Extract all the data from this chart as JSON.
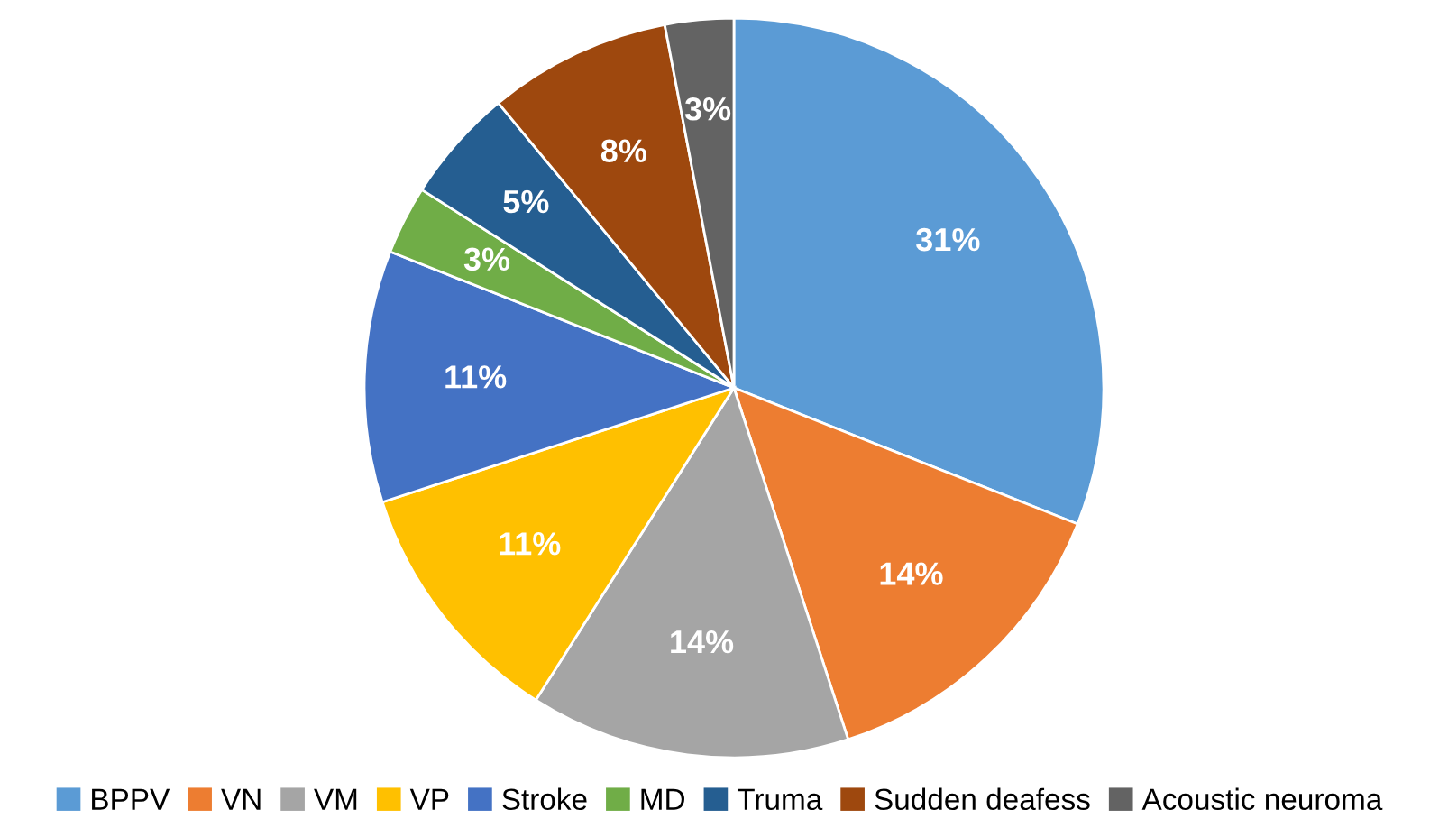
{
  "chart_data": {
    "type": "pie",
    "categories": [
      "BPPV",
      "VN",
      "VM",
      "VP",
      "Stroke",
      "MD",
      "Truma",
      "Sudden deafess",
      "Acoustic neuroma"
    ],
    "values": [
      31,
      14,
      14,
      11,
      11,
      3,
      5,
      8,
      3
    ],
    "value_labels": [
      "31%",
      "14%",
      "14%",
      "11%",
      "11%",
      "3%",
      "5%",
      "8%",
      "3%"
    ],
    "colors": [
      "#5b9bd5",
      "#ed7d31",
      "#a5a5a5",
      "#ffc000",
      "#4472c4",
      "#70ad47",
      "#255e91",
      "#9e480e",
      "#636363"
    ],
    "legend": "bottom"
  }
}
